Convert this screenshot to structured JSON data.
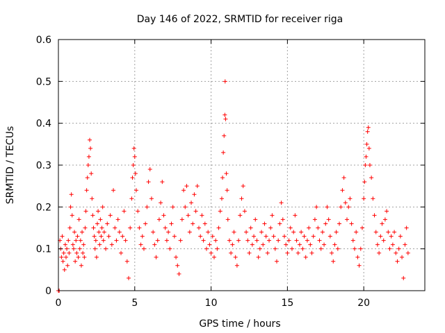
{
  "chart_data": {
    "type": "scatter",
    "title": "Day 146 of 2022, SRMTID for receiver riga",
    "xlabel": "GPS time / hours",
    "ylabel": "SRMTID / TECUs",
    "xlim": [
      0,
      24
    ],
    "ylim": [
      0,
      0.6
    ],
    "x_ticks": [
      0,
      5,
      10,
      15,
      20
    ],
    "x_tick_labels": [
      "0",
      "5",
      "10",
      "15",
      "20"
    ],
    "y_ticks": [
      0,
      0.1,
      0.2,
      0.3,
      0.4,
      0.5,
      0.6
    ],
    "y_tick_labels": [
      "0",
      "0.1",
      "0.2",
      "0.3",
      "0.4",
      "0.5",
      "0.6"
    ],
    "grid": true,
    "marker": "+",
    "color": "#ff0000",
    "points": [
      [
        0.0,
        0.0
      ],
      [
        0.05,
        0.0
      ],
      [
        0.1,
        0.12
      ],
      [
        0.15,
        0.1
      ],
      [
        0.2,
        0.08
      ],
      [
        0.25,
        0.13
      ],
      [
        0.3,
        0.07
      ],
      [
        0.35,
        0.09
      ],
      [
        0.4,
        0.05
      ],
      [
        0.45,
        0.11
      ],
      [
        0.5,
        0.08
      ],
      [
        0.55,
        0.1
      ],
      [
        0.6,
        0.06
      ],
      [
        0.65,
        0.12
      ],
      [
        0.7,
        0.09
      ],
      [
        0.75,
        0.15
      ],
      [
        0.8,
        0.2
      ],
      [
        0.85,
        0.23
      ],
      [
        0.9,
        0.18
      ],
      [
        0.95,
        0.11
      ],
      [
        1.0,
        0.1
      ],
      [
        1.05,
        0.14
      ],
      [
        1.1,
        0.07
      ],
      [
        1.15,
        0.12
      ],
      [
        1.2,
        0.09
      ],
      [
        1.25,
        0.13
      ],
      [
        1.3,
        0.08
      ],
      [
        1.35,
        0.17
      ],
      [
        1.4,
        0.1
      ],
      [
        1.45,
        0.12
      ],
      [
        1.5,
        0.06
      ],
      [
        1.55,
        0.14
      ],
      [
        1.6,
        0.09
      ],
      [
        1.65,
        0.11
      ],
      [
        1.7,
        0.08
      ],
      [
        1.75,
        0.15
      ],
      [
        1.8,
        0.19
      ],
      [
        1.85,
        0.24
      ],
      [
        1.9,
        0.27
      ],
      [
        1.95,
        0.3
      ],
      [
        2.0,
        0.32
      ],
      [
        2.05,
        0.36
      ],
      [
        2.1,
        0.34
      ],
      [
        2.15,
        0.28
      ],
      [
        2.2,
        0.22
      ],
      [
        2.25,
        0.18
      ],
      [
        2.3,
        0.15
      ],
      [
        2.35,
        0.13
      ],
      [
        2.4,
        0.1
      ],
      [
        2.45,
        0.12
      ],
      [
        2.5,
        0.08
      ],
      [
        2.55,
        0.16
      ],
      [
        2.6,
        0.19
      ],
      [
        2.65,
        0.14
      ],
      [
        2.7,
        0.11
      ],
      [
        2.75,
        0.17
      ],
      [
        2.8,
        0.13
      ],
      [
        2.85,
        0.15
      ],
      [
        2.9,
        0.2
      ],
      [
        2.95,
        0.12
      ],
      [
        3.0,
        0.14
      ],
      [
        3.1,
        0.1
      ],
      [
        3.2,
        0.16
      ],
      [
        3.3,
        0.13
      ],
      [
        3.4,
        0.18
      ],
      [
        3.5,
        0.11
      ],
      [
        3.6,
        0.24
      ],
      [
        3.7,
        0.15
      ],
      [
        3.8,
        0.12
      ],
      [
        3.9,
        0.17
      ],
      [
        4.0,
        0.14
      ],
      [
        4.1,
        0.09
      ],
      [
        4.2,
        0.13
      ],
      [
        4.3,
        0.19
      ],
      [
        4.4,
        0.12
      ],
      [
        4.5,
        0.07
      ],
      [
        4.6,
        0.03
      ],
      [
        4.7,
        0.15
      ],
      [
        4.8,
        0.22
      ],
      [
        4.85,
        0.27
      ],
      [
        4.9,
        0.3
      ],
      [
        4.95,
        0.34
      ],
      [
        5.0,
        0.32
      ],
      [
        5.05,
        0.28
      ],
      [
        5.1,
        0.24
      ],
      [
        5.2,
        0.19
      ],
      [
        5.3,
        0.15
      ],
      [
        5.4,
        0.11
      ],
      [
        5.5,
        0.13
      ],
      [
        5.6,
        0.1
      ],
      [
        5.7,
        0.16
      ],
      [
        5.8,
        0.2
      ],
      [
        5.9,
        0.26
      ],
      [
        6.0,
        0.29
      ],
      [
        6.1,
        0.22
      ],
      [
        6.2,
        0.14
      ],
      [
        6.3,
        0.11
      ],
      [
        6.4,
        0.08
      ],
      [
        6.5,
        0.12
      ],
      [
        6.6,
        0.17
      ],
      [
        6.7,
        0.21
      ],
      [
        6.8,
        0.26
      ],
      [
        6.9,
        0.18
      ],
      [
        7.0,
        0.15
      ],
      [
        7.1,
        0.12
      ],
      [
        7.2,
        0.14
      ],
      [
        7.3,
        0.1
      ],
      [
        7.4,
        0.16
      ],
      [
        7.5,
        0.2
      ],
      [
        7.6,
        0.13
      ],
      [
        7.7,
        0.08
      ],
      [
        7.8,
        0.06
      ],
      [
        7.9,
        0.04
      ],
      [
        8.0,
        0.12
      ],
      [
        8.1,
        0.17
      ],
      [
        8.2,
        0.24
      ],
      [
        8.3,
        0.2
      ],
      [
        8.4,
        0.25
      ],
      [
        8.5,
        0.18
      ],
      [
        8.6,
        0.14
      ],
      [
        8.7,
        0.21
      ],
      [
        8.8,
        0.16
      ],
      [
        8.9,
        0.23
      ],
      [
        9.0,
        0.19
      ],
      [
        9.1,
        0.25
      ],
      [
        9.2,
        0.15
      ],
      [
        9.3,
        0.13
      ],
      [
        9.4,
        0.18
      ],
      [
        9.5,
        0.12
      ],
      [
        9.6,
        0.16
      ],
      [
        9.7,
        0.1
      ],
      [
        9.8,
        0.14
      ],
      [
        9.9,
        0.11
      ],
      [
        10.0,
        0.09
      ],
      [
        10.1,
        0.13
      ],
      [
        10.2,
        0.08
      ],
      [
        10.3,
        0.12
      ],
      [
        10.4,
        0.1
      ],
      [
        10.5,
        0.15
      ],
      [
        10.6,
        0.19
      ],
      [
        10.7,
        0.22
      ],
      [
        10.75,
        0.27
      ],
      [
        10.8,
        0.33
      ],
      [
        10.85,
        0.37
      ],
      [
        10.9,
        0.42
      ],
      [
        10.92,
        0.5
      ],
      [
        10.95,
        0.41
      ],
      [
        11.0,
        0.28
      ],
      [
        11.05,
        0.24
      ],
      [
        11.1,
        0.17
      ],
      [
        11.2,
        0.12
      ],
      [
        11.3,
        0.09
      ],
      [
        11.4,
        0.11
      ],
      [
        11.5,
        0.14
      ],
      [
        11.6,
        0.08
      ],
      [
        11.7,
        0.06
      ],
      [
        11.8,
        0.12
      ],
      [
        11.9,
        0.18
      ],
      [
        12.0,
        0.22
      ],
      [
        12.1,
        0.25
      ],
      [
        12.2,
        0.19
      ],
      [
        12.3,
        0.14
      ],
      [
        12.4,
        0.12
      ],
      [
        12.5,
        0.09
      ],
      [
        12.6,
        0.15
      ],
      [
        12.7,
        0.11
      ],
      [
        12.8,
        0.13
      ],
      [
        12.9,
        0.17
      ],
      [
        13.0,
        0.12
      ],
      [
        13.1,
        0.08
      ],
      [
        13.2,
        0.1
      ],
      [
        13.3,
        0.14
      ],
      [
        13.4,
        0.11
      ],
      [
        13.5,
        0.16
      ],
      [
        13.6,
        0.13
      ],
      [
        13.7,
        0.09
      ],
      [
        13.8,
        0.12
      ],
      [
        13.9,
        0.15
      ],
      [
        14.0,
        0.18
      ],
      [
        14.1,
        0.13
      ],
      [
        14.2,
        0.1
      ],
      [
        14.3,
        0.07
      ],
      [
        14.4,
        0.12
      ],
      [
        14.5,
        0.16
      ],
      [
        14.6,
        0.21
      ],
      [
        14.7,
        0.17
      ],
      [
        14.8,
        0.13
      ],
      [
        14.9,
        0.11
      ],
      [
        15.0,
        0.09
      ],
      [
        15.1,
        0.12
      ],
      [
        15.2,
        0.15
      ],
      [
        15.3,
        0.1
      ],
      [
        15.4,
        0.14
      ],
      [
        15.5,
        0.18
      ],
      [
        15.6,
        0.12
      ],
      [
        15.7,
        0.09
      ],
      [
        15.8,
        0.11
      ],
      [
        15.9,
        0.14
      ],
      [
        16.0,
        0.1
      ],
      [
        16.1,
        0.13
      ],
      [
        16.2,
        0.08
      ],
      [
        16.3,
        0.12
      ],
      [
        16.4,
        0.15
      ],
      [
        16.5,
        0.11
      ],
      [
        16.6,
        0.09
      ],
      [
        16.7,
        0.13
      ],
      [
        16.8,
        0.17
      ],
      [
        16.9,
        0.2
      ],
      [
        17.0,
        0.15
      ],
      [
        17.1,
        0.12
      ],
      [
        17.2,
        0.1
      ],
      [
        17.3,
        0.14
      ],
      [
        17.4,
        0.11
      ],
      [
        17.5,
        0.16
      ],
      [
        17.6,
        0.2
      ],
      [
        17.7,
        0.17
      ],
      [
        17.8,
        0.13
      ],
      [
        17.9,
        0.09
      ],
      [
        18.0,
        0.07
      ],
      [
        18.1,
        0.11
      ],
      [
        18.2,
        0.14
      ],
      [
        18.3,
        0.1
      ],
      [
        18.4,
        0.16
      ],
      [
        18.5,
        0.2
      ],
      [
        18.6,
        0.24
      ],
      [
        18.7,
        0.27
      ],
      [
        18.8,
        0.21
      ],
      [
        18.9,
        0.17
      ],
      [
        19.0,
        0.2
      ],
      [
        19.1,
        0.22
      ],
      [
        19.2,
        0.16
      ],
      [
        19.3,
        0.12
      ],
      [
        19.4,
        0.1
      ],
      [
        19.5,
        0.14
      ],
      [
        19.6,
        0.08
      ],
      [
        19.7,
        0.06
      ],
      [
        19.8,
        0.1
      ],
      [
        19.9,
        0.15
      ],
      [
        20.0,
        0.22
      ],
      [
        20.05,
        0.26
      ],
      [
        20.1,
        0.3
      ],
      [
        20.15,
        0.32
      ],
      [
        20.2,
        0.35
      ],
      [
        20.25,
        0.38
      ],
      [
        20.3,
        0.39
      ],
      [
        20.35,
        0.34
      ],
      [
        20.4,
        0.3
      ],
      [
        20.5,
        0.27
      ],
      [
        20.6,
        0.22
      ],
      [
        20.7,
        0.18
      ],
      [
        20.8,
        0.14
      ],
      [
        20.9,
        0.11
      ],
      [
        21.0,
        0.09
      ],
      [
        21.1,
        0.13
      ],
      [
        21.2,
        0.16
      ],
      [
        21.3,
        0.12
      ],
      [
        21.4,
        0.17
      ],
      [
        21.5,
        0.19
      ],
      [
        21.6,
        0.14
      ],
      [
        21.7,
        0.1
      ],
      [
        21.8,
        0.13
      ],
      [
        21.9,
        0.11
      ],
      [
        22.0,
        0.14
      ],
      [
        22.1,
        0.09
      ],
      [
        22.2,
        0.07
      ],
      [
        22.3,
        0.1
      ],
      [
        22.4,
        0.13
      ],
      [
        22.5,
        0.08
      ],
      [
        22.6,
        0.03
      ],
      [
        22.7,
        0.11
      ],
      [
        22.8,
        0.15
      ],
      [
        22.9,
        0.09
      ]
    ]
  }
}
